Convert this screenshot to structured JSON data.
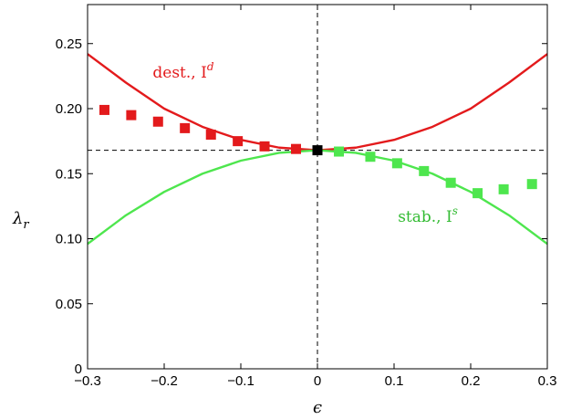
{
  "chart_data": {
    "type": "line",
    "title": "",
    "xlabel": "ϵ",
    "ylabel": "λ",
    "ylabel_sub": "r",
    "xlim": [
      -0.3,
      0.3
    ],
    "ylim": [
      0,
      0.28
    ],
    "xticks": [
      -0.3,
      -0.2,
      -0.1,
      0,
      0.1,
      0.2,
      0.3
    ],
    "xtick_labels": [
      "−0.3",
      "−0.2",
      "−0.1",
      "0",
      "0.1",
      "0.2",
      "0.3"
    ],
    "yticks": [
      0,
      0.05,
      0.1,
      0.15,
      0.2,
      0.25
    ],
    "ytick_labels": [
      "0",
      "0.05",
      "0.10",
      "0.15",
      "0.20",
      "0.25"
    ],
    "grid": false,
    "reference_lines": {
      "x": 0,
      "y": 0.168
    },
    "colors": {
      "destabilizing": "#e31a1c",
      "stabilizing": "#4ee64e",
      "origin": "#000000"
    },
    "series": [
      {
        "type": "line",
        "color": "#e31a1c",
        "x": [
          -0.3,
          -0.25,
          -0.2,
          -0.15,
          -0.1,
          -0.05,
          0,
          0.05,
          0.1,
          0.15,
          0.2,
          0.25,
          0.3
        ],
        "y": [
          0.242,
          0.22,
          0.2,
          0.186,
          0.176,
          0.17,
          0.168,
          0.17,
          0.176,
          0.186,
          0.2,
          0.22,
          0.242
        ]
      },
      {
        "type": "line",
        "color": "#4ee64e",
        "x": [
          -0.3,
          -0.25,
          -0.2,
          -0.15,
          -0.1,
          -0.05,
          0,
          0.05,
          0.1,
          0.15,
          0.2,
          0.25,
          0.3
        ],
        "y": [
          0.096,
          0.118,
          0.136,
          0.15,
          0.16,
          0.166,
          0.168,
          0.166,
          0.16,
          0.15,
          0.136,
          0.118,
          0.096
        ]
      },
      {
        "type": "scatter",
        "color": "#e31a1c",
        "x": [
          -0.278,
          -0.243,
          -0.208,
          -0.173,
          -0.139,
          -0.104,
          -0.069,
          -0.028
        ],
        "y": [
          0.199,
          0.195,
          0.19,
          0.185,
          0.18,
          0.175,
          0.171,
          0.169
        ]
      },
      {
        "type": "scatter",
        "color": "#4ee64e",
        "x": [
          0.028,
          0.069,
          0.104,
          0.139,
          0.174,
          0.209,
          0.243,
          0.28
        ],
        "y": [
          0.167,
          0.163,
          0.158,
          0.152,
          0.143,
          0.135,
          0.138,
          0.142
        ]
      },
      {
        "type": "scatter",
        "color": "#000000",
        "x": [
          0
        ],
        "y": [
          0.168
        ]
      }
    ],
    "annotations": [
      {
        "text": "dest., I",
        "sup": "d",
        "color": "#e31a1c",
        "x": -0.215,
        "y": 0.224
      },
      {
        "text": "stab., I",
        "sup": "s",
        "color": "#33bb33",
        "x": 0.105,
        "y": 0.113
      }
    ]
  }
}
